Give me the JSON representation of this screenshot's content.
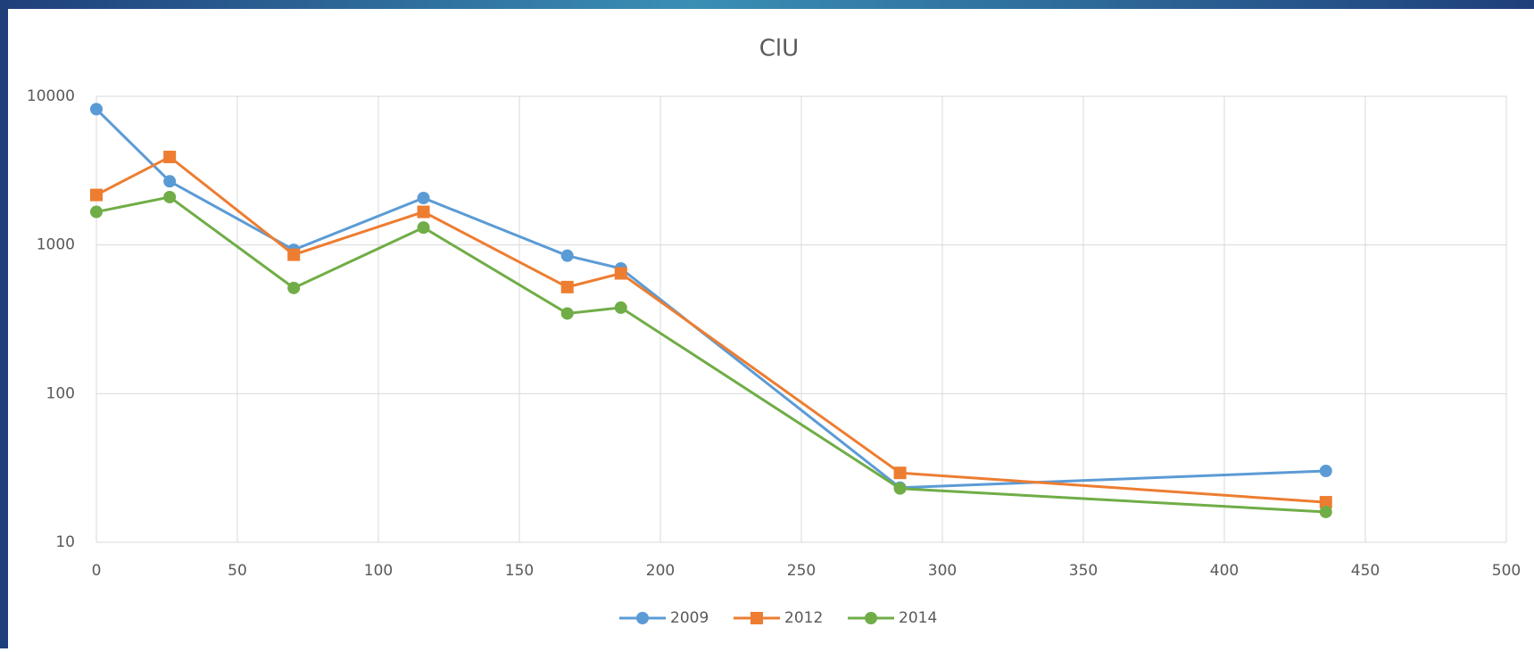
{
  "chart_data": {
    "type": "line",
    "title": "ClU",
    "x": [
      0,
      26,
      70,
      116,
      167,
      186,
      285,
      436
    ],
    "series": [
      {
        "name": "2009",
        "color": "#5b9bd5",
        "marker": "circle",
        "values": [
          8200,
          2680,
          927,
          2070,
          847,
          695,
          23.3,
          30.2
        ]
      },
      {
        "name": "2012",
        "color": "#ed7d31",
        "marker": "square",
        "values": [
          2170,
          3910,
          860,
          1670,
          521,
          644,
          29.3,
          18.6
        ]
      },
      {
        "name": "2014",
        "color": "#70ad47",
        "marker": "circle",
        "values": [
          1670,
          2100,
          514,
          1310,
          346,
          379,
          23,
          16
        ]
      }
    ],
    "xlim": [
      0,
      500
    ],
    "xticks": [
      0,
      50,
      100,
      150,
      200,
      250,
      300,
      350,
      400,
      450,
      500
    ],
    "ylim": [
      10,
      10000
    ],
    "yticks": [
      10,
      100,
      1000,
      10000
    ],
    "ylog": true,
    "grid": true,
    "legend": "bottom"
  }
}
